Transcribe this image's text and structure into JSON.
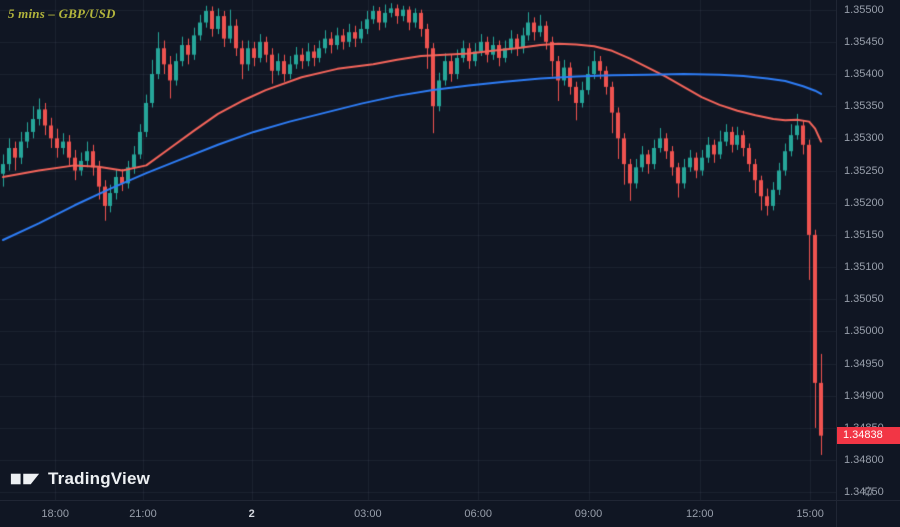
{
  "header": {
    "symbol_label": "5 mins – GBP/USD"
  },
  "branding": {
    "logo_text": "TradingView"
  },
  "icons": {
    "settings_gear": "⚙"
  },
  "chart_data": {
    "type": "candlestick",
    "symbol": "GBP/USD",
    "interval": "5 mins",
    "last_price": "1.34838",
    "slots": 140,
    "price_axis": {
      "min": 1.34738,
      "max": 1.35515,
      "tick_step": 0.0005,
      "labels": [
        "1.35500",
        "1.35450",
        "1.35400",
        "1.35350",
        "1.35300",
        "1.35250",
        "1.35200",
        "1.35150",
        "1.35100",
        "1.35050",
        "1.35000",
        "1.34950",
        "1.34900",
        "1.34850",
        "1.34800",
        "1.34750"
      ]
    },
    "time_axis": {
      "labels": [
        {
          "label": "18:00",
          "pos": 0.066,
          "emph": false
        },
        {
          "label": "21:00",
          "pos": 0.171,
          "emph": false
        },
        {
          "label": "2",
          "pos": 0.301,
          "emph": true
        },
        {
          "label": "03:00",
          "pos": 0.44,
          "emph": false
        },
        {
          "label": "06:00",
          "pos": 0.572,
          "emph": false
        },
        {
          "label": "09:00",
          "pos": 0.704,
          "emph": false
        },
        {
          "label": "12:00",
          "pos": 0.837,
          "emph": false
        },
        {
          "label": "15:00",
          "pos": 0.969,
          "emph": false
        }
      ]
    },
    "colors": {
      "background": "#101623",
      "grid": "rgba(140,150,170,0.10)",
      "up": "#26a69a",
      "down": "#ef5350",
      "ma_fast": "#f5655b",
      "ma_slow": "#2e7df6",
      "last_price_bg": "#f23645",
      "axis_text": "#989fab",
      "symbol_text": "#b2b43c"
    },
    "candles": [
      [
        1.35245,
        1.35275,
        1.35225,
        1.3526
      ],
      [
        1.3526,
        1.353,
        1.3525,
        1.35285
      ],
      [
        1.35285,
        1.35295,
        1.3525,
        1.3527
      ],
      [
        1.3527,
        1.3531,
        1.3526,
        1.35295
      ],
      [
        1.35295,
        1.35325,
        1.35285,
        1.3531
      ],
      [
        1.3531,
        1.3535,
        1.353,
        1.3533
      ],
      [
        1.3533,
        1.35362,
        1.3532,
        1.35345
      ],
      [
        1.35345,
        1.35355,
        1.35305,
        1.3532
      ],
      [
        1.3532,
        1.35332,
        1.35285,
        1.353
      ],
      [
        1.353,
        1.35315,
        1.3527,
        1.35285
      ],
      [
        1.35285,
        1.35308,
        1.35275,
        1.35295
      ],
      [
        1.35295,
        1.35305,
        1.35258,
        1.3527
      ],
      [
        1.3527,
        1.35282,
        1.35235,
        1.3525
      ],
      [
        1.3525,
        1.35278,
        1.35242,
        1.35265
      ],
      [
        1.35265,
        1.35295,
        1.35255,
        1.3528
      ],
      [
        1.3528,
        1.3529,
        1.35242,
        1.35255
      ],
      [
        1.35255,
        1.35265,
        1.35205,
        1.35225
      ],
      [
        1.35225,
        1.35235,
        1.35172,
        1.35195
      ],
      [
        1.35195,
        1.35228,
        1.35185,
        1.35215
      ],
      [
        1.35215,
        1.35252,
        1.35205,
        1.3524
      ],
      [
        1.3524,
        1.35252,
        1.35218,
        1.3523
      ],
      [
        1.3523,
        1.35265,
        1.35222,
        1.35255
      ],
      [
        1.35255,
        1.35288,
        1.35245,
        1.35275
      ],
      [
        1.35275,
        1.35322,
        1.35268,
        1.3531
      ],
      [
        1.3531,
        1.35368,
        1.35302,
        1.35355
      ],
      [
        1.35355,
        1.35422,
        1.35348,
        1.354
      ],
      [
        1.354,
        1.35465,
        1.35392,
        1.3544
      ],
      [
        1.3544,
        1.35452,
        1.354,
        1.35415
      ],
      [
        1.35415,
        1.35428,
        1.35362,
        1.3539
      ],
      [
        1.3539,
        1.35432,
        1.35382,
        1.3542
      ],
      [
        1.3542,
        1.35458,
        1.35412,
        1.35445
      ],
      [
        1.35445,
        1.35455,
        1.35415,
        1.3543
      ],
      [
        1.3543,
        1.35472,
        1.35422,
        1.3546
      ],
      [
        1.3546,
        1.35492,
        1.35452,
        1.3548
      ],
      [
        1.3548,
        1.35506,
        1.35472,
        1.35498
      ],
      [
        1.35498,
        1.35505,
        1.35458,
        1.3547
      ],
      [
        1.3547,
        1.35502,
        1.35462,
        1.3549
      ],
      [
        1.3549,
        1.35498,
        1.35442,
        1.35455
      ],
      [
        1.35455,
        1.355,
        1.35448,
        1.35475
      ],
      [
        1.35475,
        1.35485,
        1.35428,
        1.3544
      ],
      [
        1.3544,
        1.35452,
        1.35392,
        1.35415
      ],
      [
        1.35415,
        1.35452,
        1.35405,
        1.3544
      ],
      [
        1.3544,
        1.3545,
        1.35412,
        1.35425
      ],
      [
        1.35425,
        1.35462,
        1.35418,
        1.3545
      ],
      [
        1.3545,
        1.35458,
        1.35418,
        1.3543
      ],
      [
        1.3543,
        1.3544,
        1.35385,
        1.35405
      ],
      [
        1.35405,
        1.35432,
        1.35398,
        1.3542
      ],
      [
        1.3542,
        1.3543,
        1.35388,
        1.354
      ],
      [
        1.354,
        1.35428,
        1.35392,
        1.35415
      ],
      [
        1.35415,
        1.35442,
        1.35408,
        1.3543
      ],
      [
        1.3543,
        1.3544,
        1.35408,
        1.3542
      ],
      [
        1.3542,
        1.35448,
        1.35412,
        1.35435
      ],
      [
        1.35435,
        1.35445,
        1.35412,
        1.35425
      ],
      [
        1.35425,
        1.35452,
        1.35418,
        1.3544
      ],
      [
        1.3544,
        1.35468,
        1.35432,
        1.35455
      ],
      [
        1.35455,
        1.35465,
        1.35432,
        1.35445
      ],
      [
        1.35445,
        1.35472,
        1.35438,
        1.3546
      ],
      [
        1.3546,
        1.3547,
        1.35438,
        1.3545
      ],
      [
        1.3545,
        1.35478,
        1.35442,
        1.35465
      ],
      [
        1.35465,
        1.35475,
        1.35442,
        1.35455
      ],
      [
        1.35455,
        1.35482,
        1.35448,
        1.3547
      ],
      [
        1.3547,
        1.35498,
        1.35462,
        1.35485
      ],
      [
        1.35485,
        1.35506,
        1.35478,
        1.35498
      ],
      [
        1.35498,
        1.35504,
        1.35468,
        1.3548
      ],
      [
        1.3548,
        1.35508,
        1.35472,
        1.35495
      ],
      [
        1.35495,
        1.3551,
        1.35488,
        1.35502
      ],
      [
        1.35502,
        1.35508,
        1.35478,
        1.3549
      ],
      [
        1.3549,
        1.35506,
        1.35482,
        1.355
      ],
      [
        1.355,
        1.35505,
        1.35468,
        1.3548
      ],
      [
        1.3548,
        1.35502,
        1.35472,
        1.35495
      ],
      [
        1.35495,
        1.355,
        1.35458,
        1.3547
      ],
      [
        1.3547,
        1.35478,
        1.35408,
        1.3544
      ],
      [
        1.3544,
        1.35448,
        1.35308,
        1.3535
      ],
      [
        1.3535,
        1.35402,
        1.35342,
        1.3539
      ],
      [
        1.3539,
        1.35432,
        1.35382,
        1.3542
      ],
      [
        1.3542,
        1.3543,
        1.35388,
        1.354
      ],
      [
        1.354,
        1.35438,
        1.35392,
        1.35425
      ],
      [
        1.35425,
        1.35452,
        1.35418,
        1.3544
      ],
      [
        1.3544,
        1.35448,
        1.35408,
        1.3542
      ],
      [
        1.3542,
        1.35448,
        1.35412,
        1.35435
      ],
      [
        1.35435,
        1.35462,
        1.35428,
        1.3545
      ],
      [
        1.3545,
        1.35458,
        1.35418,
        1.3543
      ],
      [
        1.3543,
        1.35458,
        1.35422,
        1.35445
      ],
      [
        1.35445,
        1.35452,
        1.35412,
        1.35425
      ],
      [
        1.35425,
        1.35452,
        1.35418,
        1.3544
      ],
      [
        1.3544,
        1.35468,
        1.35432,
        1.35455
      ],
      [
        1.35455,
        1.35462,
        1.35428,
        1.3544
      ],
      [
        1.3544,
        1.35472,
        1.35432,
        1.3546
      ],
      [
        1.3546,
        1.35496,
        1.35452,
        1.3548
      ],
      [
        1.3548,
        1.35488,
        1.35452,
        1.35465
      ],
      [
        1.35465,
        1.35492,
        1.35458,
        1.35475
      ],
      [
        1.35475,
        1.35482,
        1.35438,
        1.3545
      ],
      [
        1.3545,
        1.35458,
        1.35396,
        1.3542
      ],
      [
        1.3542,
        1.35428,
        1.35358,
        1.3539
      ],
      [
        1.3539,
        1.35422,
        1.35382,
        1.3541
      ],
      [
        1.3541,
        1.35418,
        1.35368,
        1.3538
      ],
      [
        1.3538,
        1.35388,
        1.35328,
        1.35355
      ],
      [
        1.35355,
        1.35388,
        1.35348,
        1.35375
      ],
      [
        1.35375,
        1.35412,
        1.35368,
        1.354
      ],
      [
        1.354,
        1.35436,
        1.35392,
        1.3542
      ],
      [
        1.3542,
        1.35428,
        1.35392,
        1.35405
      ],
      [
        1.35405,
        1.35412,
        1.35368,
        1.3538
      ],
      [
        1.3538,
        1.35388,
        1.35308,
        1.3534
      ],
      [
        1.3534,
        1.35348,
        1.35268,
        1.353
      ],
      [
        1.353,
        1.35308,
        1.35228,
        1.3526
      ],
      [
        1.3526,
        1.35268,
        1.35203,
        1.3523
      ],
      [
        1.3523,
        1.35268,
        1.35222,
        1.35255
      ],
      [
        1.35255,
        1.35288,
        1.35248,
        1.35275
      ],
      [
        1.35275,
        1.35282,
        1.35245,
        1.3526
      ],
      [
        1.3526,
        1.35298,
        1.35252,
        1.35285
      ],
      [
        1.35285,
        1.35316,
        1.35278,
        1.353
      ],
      [
        1.353,
        1.35308,
        1.35268,
        1.3528
      ],
      [
        1.3528,
        1.35288,
        1.35242,
        1.35255
      ],
      [
        1.35255,
        1.35262,
        1.35208,
        1.3523
      ],
      [
        1.3523,
        1.35268,
        1.35222,
        1.35255
      ],
      [
        1.35255,
        1.35282,
        1.35248,
        1.3527
      ],
      [
        1.3527,
        1.35278,
        1.35238,
        1.3525
      ],
      [
        1.3525,
        1.35282,
        1.35242,
        1.3527
      ],
      [
        1.3527,
        1.35302,
        1.35262,
        1.3529
      ],
      [
        1.3529,
        1.35298,
        1.35262,
        1.35275
      ],
      [
        1.35275,
        1.35312,
        1.35268,
        1.35295
      ],
      [
        1.35295,
        1.35322,
        1.35288,
        1.3531
      ],
      [
        1.3531,
        1.35318,
        1.35278,
        1.3529
      ],
      [
        1.3529,
        1.35318,
        1.35282,
        1.35305
      ],
      [
        1.35305,
        1.35312,
        1.35272,
        1.35285
      ],
      [
        1.35285,
        1.35292,
        1.35248,
        1.3526
      ],
      [
        1.3526,
        1.35268,
        1.35215,
        1.35235
      ],
      [
        1.35235,
        1.35242,
        1.35188,
        1.3521
      ],
      [
        1.3521,
        1.35222,
        1.3518,
        1.35195
      ],
      [
        1.35195,
        1.35232,
        1.35188,
        1.3522
      ],
      [
        1.3522,
        1.35262,
        1.35212,
        1.3525
      ],
      [
        1.3525,
        1.35292,
        1.35242,
        1.3528
      ],
      [
        1.3528,
        1.35322,
        1.35272,
        1.35305
      ],
      [
        1.35305,
        1.35338,
        1.35298,
        1.3532
      ],
      [
        1.3532,
        1.35328,
        1.35275,
        1.3529
      ],
      [
        1.3529,
        1.35298,
        1.3508,
        1.3515
      ],
      [
        1.3515,
        1.35158,
        1.3485,
        1.3492
      ],
      [
        1.3492,
        1.34965,
        1.34808,
        1.34838
      ]
    ],
    "ma_lines": [
      {
        "name": "fast-ma-red",
        "color": "#f5655b",
        "points": [
          [
            0,
            1.3524
          ],
          [
            6,
            1.3525
          ],
          [
            12,
            1.35258
          ],
          [
            16,
            1.35256
          ],
          [
            20,
            1.3525
          ],
          [
            24,
            1.35258
          ],
          [
            28,
            1.35285
          ],
          [
            32,
            1.35312
          ],
          [
            36,
            1.35338
          ],
          [
            40,
            1.35358
          ],
          [
            44,
            1.35375
          ],
          [
            50,
            1.35395
          ],
          [
            56,
            1.35408
          ],
          [
            62,
            1.35415
          ],
          [
            66,
            1.35422
          ],
          [
            70,
            1.35428
          ],
          [
            74,
            1.3543
          ],
          [
            78,
            1.35432
          ],
          [
            82,
            1.35436
          ],
          [
            86,
            1.3544
          ],
          [
            90,
            1.35445
          ],
          [
            93,
            1.35447
          ],
          [
            96,
            1.35446
          ],
          [
            99,
            1.35443
          ],
          [
            102,
            1.35436
          ],
          [
            105,
            1.35424
          ],
          [
            108,
            1.3541
          ],
          [
            111,
            1.35396
          ],
          [
            114,
            1.3538
          ],
          [
            117,
            1.35364
          ],
          [
            120,
            1.35352
          ],
          [
            123,
            1.35343
          ],
          [
            126,
            1.35336
          ],
          [
            129,
            1.3533
          ],
          [
            131,
            1.35328
          ],
          [
            133,
            1.35329
          ],
          [
            135,
            1.35326
          ],
          [
            136,
            1.35315
          ],
          [
            137,
            1.35295
          ]
        ]
      },
      {
        "name": "slow-ma-blue",
        "color": "#2e7df6",
        "points": [
          [
            0,
            1.35142
          ],
          [
            6,
            1.35168
          ],
          [
            12,
            1.35196
          ],
          [
            18,
            1.35222
          ],
          [
            24,
            1.35246
          ],
          [
            30,
            1.35268
          ],
          [
            36,
            1.3529
          ],
          [
            42,
            1.3531
          ],
          [
            48,
            1.35326
          ],
          [
            54,
            1.3534
          ],
          [
            60,
            1.35354
          ],
          [
            66,
            1.35366
          ],
          [
            72,
            1.35375
          ],
          [
            78,
            1.35382
          ],
          [
            84,
            1.35388
          ],
          [
            90,
            1.35393
          ],
          [
            96,
            1.35396
          ],
          [
            102,
            1.35398
          ],
          [
            108,
            1.35399
          ],
          [
            114,
            1.354
          ],
          [
            120,
            1.35399
          ],
          [
            124,
            1.35397
          ],
          [
            128,
            1.35393
          ],
          [
            131,
            1.35389
          ],
          [
            134,
            1.35381
          ],
          [
            136,
            1.35374
          ],
          [
            137,
            1.35369
          ]
        ]
      }
    ]
  }
}
